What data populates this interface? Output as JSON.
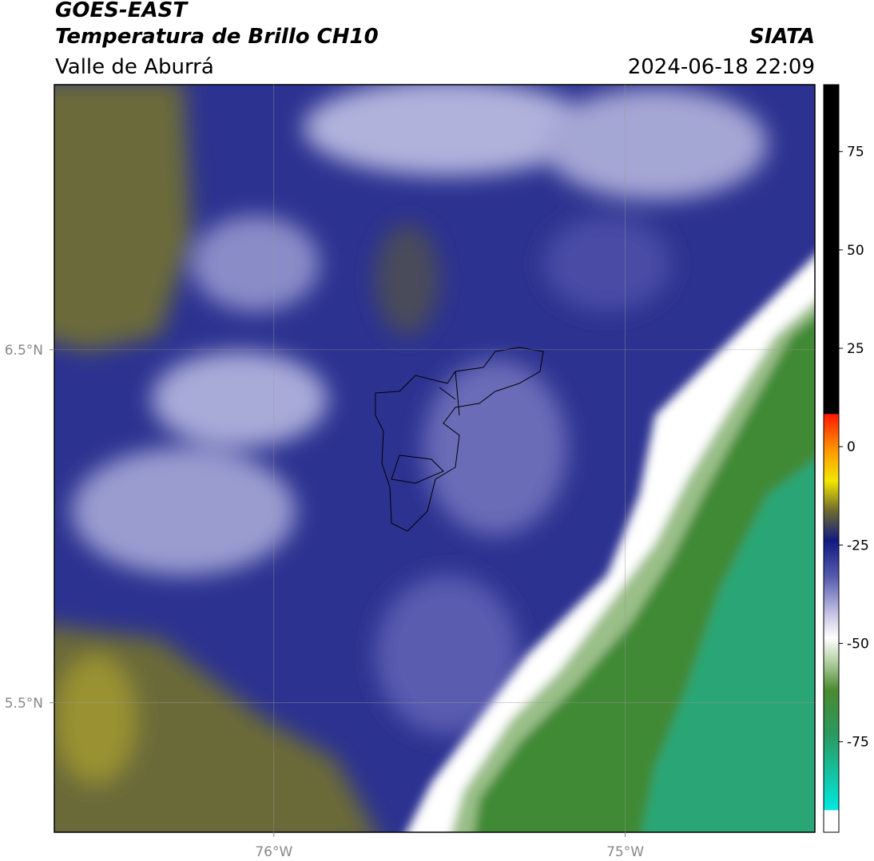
{
  "header": {
    "satellite": "GOES-EAST",
    "product": "Temperatura de Brillo CH10",
    "region": "Valle de Aburrá",
    "source": "SIATA",
    "timestamp": "2024-06-18 22:09"
  },
  "map": {
    "xlim": [
      -76.625,
      -74.46
    ],
    "ylim": [
      5.133,
      7.251
    ],
    "xticks": [
      {
        "value": -76,
        "label": "76°W"
      },
      {
        "value": -75,
        "label": "75°W"
      }
    ],
    "yticks": [
      {
        "value": 6.5,
        "label": "6.5°N"
      },
      {
        "value": 5.5,
        "label": "5.5°N"
      }
    ]
  },
  "colorbar": {
    "range": [
      -98,
      92
    ],
    "ticks": [
      75,
      50,
      25,
      0,
      -25,
      -50,
      -75
    ]
  }
}
